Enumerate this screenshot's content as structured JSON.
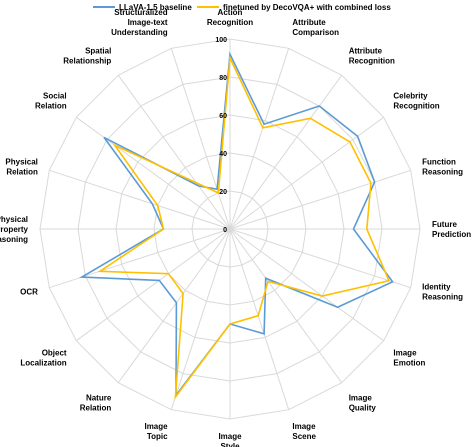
{
  "chart_data": {
    "type": "radar",
    "categories": [
      "Action Recognition",
      "Attribute Comparison",
      "Attribute Recognition",
      "Celebrity Recognition",
      "Function Reasoning",
      "Future Prediction",
      "Identity Reasoning",
      "Image Emotion",
      "Image Quality",
      "Image Scene",
      "Image Style",
      "Image Topic",
      "Nature Relation",
      "Object Localization",
      "OCR",
      "Physical Property Reasoning",
      "Physical Relation",
      "Social Relation",
      "Spatial Relationship",
      "Structuralized Image-text Understanding"
    ],
    "category_lines": [
      [
        "Action",
        "Recognition"
      ],
      [
        "Attribute",
        "Comparison"
      ],
      [
        "Attribute",
        "Recognition"
      ],
      [
        "Celebrity",
        "Recognition"
      ],
      [
        "Function",
        "Reasoning"
      ],
      [
        "Future",
        "Prediction"
      ],
      [
        "Identity",
        "Reasoning"
      ],
      [
        "Image",
        "Emotion"
      ],
      [
        "Image",
        "Quality"
      ],
      [
        "Image",
        "Scene"
      ],
      [
        "Image",
        "Style"
      ],
      [
        "Image",
        "Topic"
      ],
      [
        "Nature",
        "Relation"
      ],
      [
        "Object",
        "Localization"
      ],
      [
        "OCR"
      ],
      [
        "Physical",
        "Property",
        "Reasoning"
      ],
      [
        "Physical",
        "Relation"
      ],
      [
        "Social",
        "Relation"
      ],
      [
        "Spatial",
        "Relationship"
      ],
      [
        "Structuralized",
        "Image-text",
        "Understanding"
      ]
    ],
    "series": [
      {
        "name": "LLaVA-1.5 baseline",
        "color": "#5b9bd5",
        "values": [
          92,
          58,
          80,
          83,
          80,
          65,
          90,
          70,
          32,
          58,
          50,
          92,
          48,
          46,
          82,
          35,
          43,
          82,
          28,
          22
        ]
      },
      {
        "name": "finetuned by DecoVQA+ with combined loss",
        "color": "#ffc000",
        "values": [
          90,
          56,
          72,
          78,
          78,
          72,
          88,
          60,
          34,
          48,
          50,
          93,
          42,
          40,
          72,
          35,
          40,
          75,
          30,
          20
        ]
      }
    ],
    "rlim": [
      0,
      100
    ],
    "ticks": [
      0,
      20,
      40,
      60,
      80,
      100
    ],
    "grid": true,
    "legend_position": "top"
  }
}
